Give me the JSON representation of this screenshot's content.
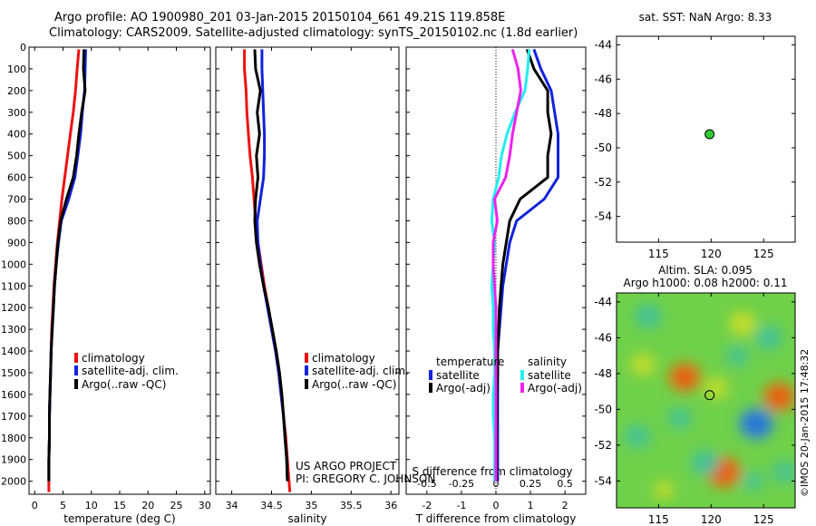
{
  "header": {
    "title_line1": "Argo profile: AO 1900980_201 03-Jan-2015 20150104_661 49.21S 119.858E",
    "title_line2": "Climatology: CARS2009. Satellite-adjusted climatology: synTS_20150102.nc (1.8d earlier)"
  },
  "credits": {
    "project": "US ARGO PROJECT",
    "pi": "PI: GREGORY C. JOHNSON",
    "imos": "©IMOS 20-Jan-2015 17:48:32"
  },
  "colors": {
    "climatology": "#ee1111",
    "satellite": "#1122dd",
    "argo": "#000000",
    "salinity_satellite": "#22eeee",
    "salinity_argo": "#ee22ee"
  },
  "chart_data": [
    {
      "id": "temperature",
      "type": "line",
      "xlabel": "temperature (deg C)",
      "xlim": [
        -1,
        31
      ],
      "xticks": [
        0,
        5,
        10,
        15,
        20,
        25,
        30
      ],
      "ylim": [
        2060,
        0
      ],
      "yticks": [
        0,
        100,
        200,
        300,
        400,
        500,
        600,
        700,
        800,
        900,
        1000,
        1100,
        1200,
        1300,
        1400,
        1500,
        1600,
        1700,
        1800,
        1900,
        2000
      ],
      "legend": [
        "climatology",
        "satellite-adj. clim.",
        "Argo(..raw -QC)"
      ],
      "series": [
        {
          "name": "climatology",
          "color": "#ee1111",
          "x": [
            7.8,
            7.5,
            7.2,
            6.8,
            6.3,
            5.8,
            5.3,
            4.8,
            4.4,
            4.0,
            3.7,
            3.4,
            3.2,
            3.0,
            2.9,
            2.8,
            2.7,
            2.6,
            2.6,
            2.5,
            2.5,
            2.5
          ],
          "y": [
            10,
            100,
            200,
            300,
            400,
            500,
            600,
            700,
            800,
            900,
            1000,
            1100,
            1200,
            1300,
            1400,
            1500,
            1600,
            1700,
            1800,
            1900,
            2000,
            2050
          ]
        },
        {
          "name": "satellite-adj. clim.",
          "color": "#1122dd",
          "x": [
            9.0,
            8.9,
            8.8,
            8.4,
            8.1,
            7.6,
            7.1,
            6.0,
            4.7,
            4.2,
            3.8,
            3.5,
            3.3,
            3.1,
            2.9,
            2.8,
            2.7,
            2.6,
            2.6,
            2.5,
            2.5
          ],
          "y": [
            10,
            100,
            200,
            300,
            400,
            500,
            600,
            700,
            800,
            900,
            1000,
            1100,
            1200,
            1300,
            1400,
            1500,
            1600,
            1700,
            1800,
            1900,
            2000
          ]
        },
        {
          "name": "Argo(..raw -QC)",
          "color": "#000000",
          "x": [
            8.7,
            8.6,
            8.9,
            8.3,
            7.8,
            7.4,
            6.8,
            5.6,
            4.6,
            4.1,
            3.8,
            3.5,
            3.3,
            3.1,
            2.9,
            2.8,
            2.7,
            2.6,
            2.6,
            2.5,
            2.5
          ],
          "y": [
            10,
            100,
            200,
            300,
            400,
            500,
            600,
            700,
            800,
            900,
            1000,
            1100,
            1200,
            1300,
            1400,
            1500,
            1600,
            1700,
            1800,
            1900,
            2000
          ]
        }
      ]
    },
    {
      "id": "salinity",
      "type": "line",
      "xlabel": "salinity",
      "xlim": [
        33.8,
        36.1
      ],
      "xticks": [
        34,
        34.5,
        35,
        35.5,
        36
      ],
      "ylim": [
        2060,
        0
      ],
      "legend": [
        "climatology",
        "satellite-adj. clim.",
        "Argo(..raw -QC)"
      ],
      "series": [
        {
          "name": "climatology",
          "color": "#ee1111",
          "x": [
            34.16,
            34.16,
            34.18,
            34.19,
            34.21,
            34.23,
            34.26,
            34.28,
            34.3,
            34.33,
            34.37,
            34.41,
            34.46,
            34.5,
            34.55,
            34.59,
            34.62,
            34.65,
            34.68,
            34.7,
            34.72,
            34.73
          ],
          "y": [
            10,
            100,
            200,
            300,
            400,
            500,
            600,
            700,
            800,
            900,
            1000,
            1100,
            1200,
            1300,
            1400,
            1500,
            1600,
            1700,
            1800,
            1900,
            2000,
            2050
          ]
        },
        {
          "name": "satellite-adj. clim.",
          "color": "#1122dd",
          "x": [
            34.38,
            34.38,
            34.39,
            34.4,
            34.41,
            34.41,
            34.4,
            34.36,
            34.32,
            34.33,
            34.36,
            34.4,
            34.45,
            34.5,
            34.55,
            34.59,
            34.62,
            34.65,
            34.67,
            34.69,
            34.7
          ],
          "y": [
            10,
            100,
            200,
            300,
            400,
            500,
            600,
            700,
            800,
            900,
            1000,
            1100,
            1200,
            1300,
            1400,
            1500,
            1600,
            1700,
            1800,
            1900,
            2000
          ]
        },
        {
          "name": "Argo(..raw -QC)",
          "color": "#000000",
          "x": [
            34.29,
            34.3,
            34.36,
            34.32,
            34.35,
            34.31,
            34.33,
            34.3,
            34.29,
            34.31,
            34.35,
            34.4,
            34.46,
            34.51,
            34.56,
            34.6,
            34.63,
            34.65,
            34.67,
            34.69,
            34.7
          ],
          "y": [
            10,
            100,
            200,
            300,
            400,
            500,
            600,
            700,
            800,
            900,
            1000,
            1100,
            1200,
            1300,
            1400,
            1500,
            1600,
            1700,
            1800,
            1900,
            2000
          ]
        }
      ]
    },
    {
      "id": "difference",
      "type": "line",
      "xlabel": "T difference from climatology",
      "xlabel_top": "S difference from climatology",
      "xlim": [
        -2.6,
        2.6
      ],
      "xticks": [
        -2,
        -1,
        0,
        1,
        2
      ],
      "xticks_top_labels": [
        "-0.5",
        "-0.25",
        "0",
        "0.25",
        "0.5"
      ],
      "ylim": [
        2060,
        0
      ],
      "legend_temperature_title": "temperature",
      "legend_salinity_title": "salinity",
      "legend": [
        "satellite",
        "Argo(-adj)",
        "satellite",
        "Argo(-adj)"
      ],
      "series": [
        {
          "name": "temperature satellite",
          "color": "#1122dd",
          "x": [
            1.1,
            1.3,
            1.6,
            1.7,
            1.8,
            1.8,
            1.8,
            1.4,
            0.6,
            0.4,
            0.3,
            0.2,
            0.15,
            0.1,
            0.05,
            0.05,
            0.05,
            0.05,
            0.05,
            0.05,
            0.05
          ],
          "y": [
            10,
            100,
            200,
            300,
            400,
            500,
            600,
            700,
            800,
            900,
            1000,
            1100,
            1200,
            1300,
            1400,
            1500,
            1600,
            1700,
            1800,
            1900,
            2000
          ]
        },
        {
          "name": "temperature Argo(-adj)",
          "color": "#000000",
          "x": [
            0.9,
            1.1,
            1.5,
            1.5,
            1.6,
            1.5,
            1.5,
            0.7,
            0.4,
            0.3,
            0.2,
            0.15,
            0.1,
            0.08,
            0.05,
            0.05,
            0.03,
            0.03,
            0.02,
            0.02,
            0.02
          ],
          "y": [
            10,
            100,
            200,
            300,
            400,
            500,
            600,
            700,
            800,
            900,
            1000,
            1100,
            1200,
            1300,
            1400,
            1500,
            1600,
            1700,
            1800,
            1900,
            2000
          ]
        },
        {
          "name": "salinity satellite",
          "color": "#22eeee",
          "x": [
            0.24,
            0.23,
            0.21,
            0.14,
            0.08,
            0.04,
            0.02,
            -0.02,
            -0.03,
            -0.01,
            -0.02,
            -0.03,
            -0.02,
            -0.02,
            -0.01,
            -0.01,
            -0.02,
            -0.02,
            -0.01,
            -0.01,
            -0.01
          ],
          "y": [
            10,
            100,
            200,
            300,
            400,
            500,
            600,
            700,
            800,
            900,
            1000,
            1100,
            1200,
            1300,
            1400,
            1500,
            1600,
            1700,
            1800,
            1900,
            2000
          ]
        },
        {
          "name": "salinity Argo(-adj)",
          "color": "#ee22ee",
          "x": [
            0.12,
            0.16,
            0.18,
            0.15,
            0.12,
            0.1,
            0.07,
            -0.01,
            0.01,
            -0.02,
            -0.02,
            -0.01,
            0.0,
            0.0,
            0.0,
            0.0,
            0.0,
            0.0,
            0.0,
            0.0,
            0.0
          ],
          "y": [
            10,
            100,
            200,
            300,
            400,
            500,
            600,
            700,
            800,
            900,
            1000,
            1100,
            1200,
            1300,
            1400,
            1500,
            1600,
            1700,
            1800,
            1900,
            2000
          ]
        }
      ]
    },
    {
      "id": "sst_map",
      "type": "scatter",
      "title": "sat. SST: NaN Argo: 8.33",
      "xlim": [
        111,
        128
      ],
      "ylim": [
        -55.5,
        -43.5
      ],
      "xticks": [
        115,
        120,
        125
      ],
      "yticks": [
        -44,
        -46,
        -48,
        -50,
        -52,
        -54
      ],
      "points": [
        {
          "lon": 119.858,
          "lat": -49.21
        }
      ]
    },
    {
      "id": "sla_map",
      "type": "heatmap",
      "title_line1": "Altim. SLA: 0.095",
      "title_line2": "Argo h1000: 0.08 h2000: 0.11",
      "xlim": [
        111,
        128
      ],
      "ylim": [
        -55.5,
        -43.5
      ],
      "xticks": [
        115,
        120,
        125
      ],
      "yticks": [
        -44,
        -46,
        -48,
        -50,
        -52,
        -54
      ],
      "points": [
        {
          "lon": 119.858,
          "lat": -49.21
        }
      ],
      "blobs": [
        {
          "lon": 117.5,
          "lat": -48.2,
          "v": 0.9
        },
        {
          "lon": 121.2,
          "lat": -53.5,
          "v": 1.0
        },
        {
          "lon": 126.5,
          "lat": -49.3,
          "v": 0.9
        },
        {
          "lon": 123.0,
          "lat": -45.2,
          "v": 0.6
        },
        {
          "lon": 113.5,
          "lat": -47.5,
          "v": 0.5
        },
        {
          "lon": 120.5,
          "lat": -48.8,
          "v": 0.45
        },
        {
          "lon": 124.3,
          "lat": -50.8,
          "v": -1.0
        },
        {
          "lon": 114.0,
          "lat": -44.8,
          "v": -0.6
        },
        {
          "lon": 119.5,
          "lat": -53.0,
          "v": -0.7
        },
        {
          "lon": 125.5,
          "lat": -46.0,
          "v": -0.6
        },
        {
          "lon": 113.0,
          "lat": -51.5,
          "v": -0.55
        },
        {
          "lon": 117.0,
          "lat": -50.5,
          "v": -0.45
        },
        {
          "lon": 122.5,
          "lat": -47.0,
          "v": -0.4
        },
        {
          "lon": 127.0,
          "lat": -53.5,
          "v": -0.5
        },
        {
          "lon": 115.5,
          "lat": -54.5,
          "v": 0.3
        },
        {
          "lon": 124.0,
          "lat": -54.0,
          "v": -0.35
        }
      ]
    }
  ]
}
